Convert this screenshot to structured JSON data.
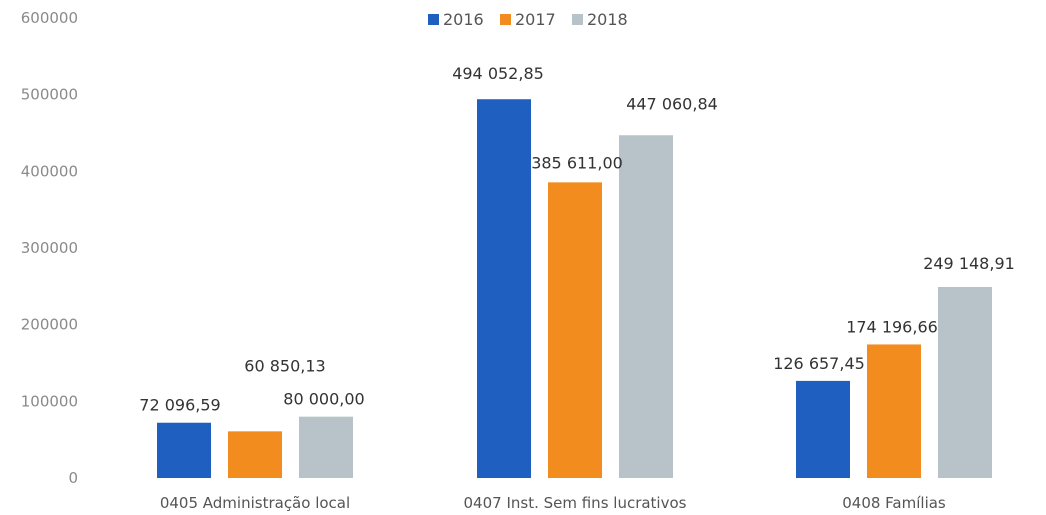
{
  "chart_data": {
    "type": "bar",
    "categories": [
      "0405 Administração local",
      "0407 Inst. Sem fins lucrativos",
      "0408 Famílias"
    ],
    "series": [
      {
        "name": "2016",
        "color": "#1f5fbf",
        "values": [
          72096.59,
          494052.85,
          126657.45
        ],
        "labels": [
          "72 096,59",
          "494 052,85",
          "126 657,45"
        ]
      },
      {
        "name": "2017",
        "color": "#f28c1e",
        "values": [
          60850.13,
          385611.0,
          174196.66
        ],
        "labels": [
          "60 850,13",
          "385 611,00",
          "174 196,66"
        ]
      },
      {
        "name": "2018",
        "color": "#b7c3c8",
        "values": [
          80000.0,
          447060.84,
          249148.91
        ],
        "labels": [
          "80 000,00",
          "447 060,84",
          "249 148,91"
        ]
      }
    ],
    "yticks": [
      "0",
      "100000",
      "200000",
      "300000",
      "400000",
      "500000",
      "600000"
    ],
    "ylim": [
      0,
      600000
    ],
    "legend": "top-center",
    "grid": false
  }
}
